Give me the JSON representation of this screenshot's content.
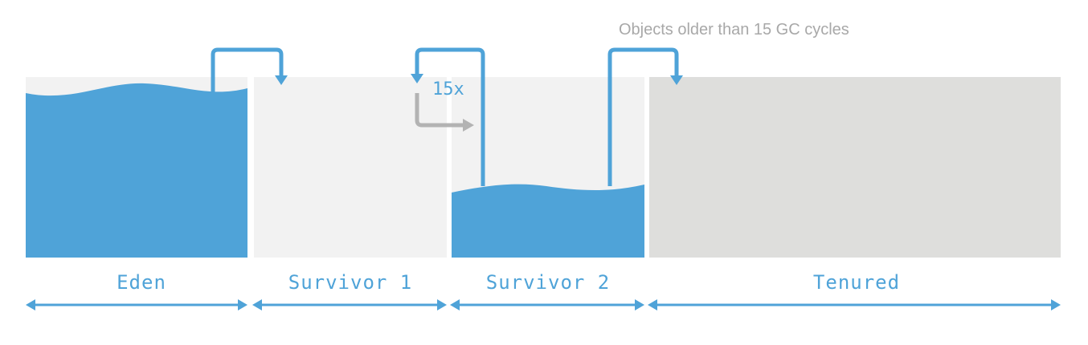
{
  "diagram": {
    "title": "Objects older than 15 GC cycles",
    "cycle_count_label": "15x",
    "colors": {
      "object_fill": "#4fa3d8",
      "arrow": "#4fa3d8",
      "gray_arrow": "#b3b3b3",
      "empty_space": "#f2f2f2",
      "tenured_space": "#dededc",
      "caption": "#a8a8a8"
    },
    "regions": [
      {
        "id": "eden",
        "label": "Eden",
        "fill_level": 0.93
      },
      {
        "id": "survivor-1",
        "label": "Survivor 1",
        "fill_level": 0.0
      },
      {
        "id": "survivor-2",
        "label": "Survivor 2",
        "fill_level": 0.38
      },
      {
        "id": "tenured",
        "label": "Tenured",
        "fill_level": 0.0
      }
    ],
    "flows": [
      {
        "from": "Eden",
        "to": "Survivor 1"
      },
      {
        "from": "Survivor 2",
        "to": "Survivor 1",
        "repeat": "15x"
      },
      {
        "from": "Survivor 2",
        "to": "Tenured"
      }
    ]
  }
}
